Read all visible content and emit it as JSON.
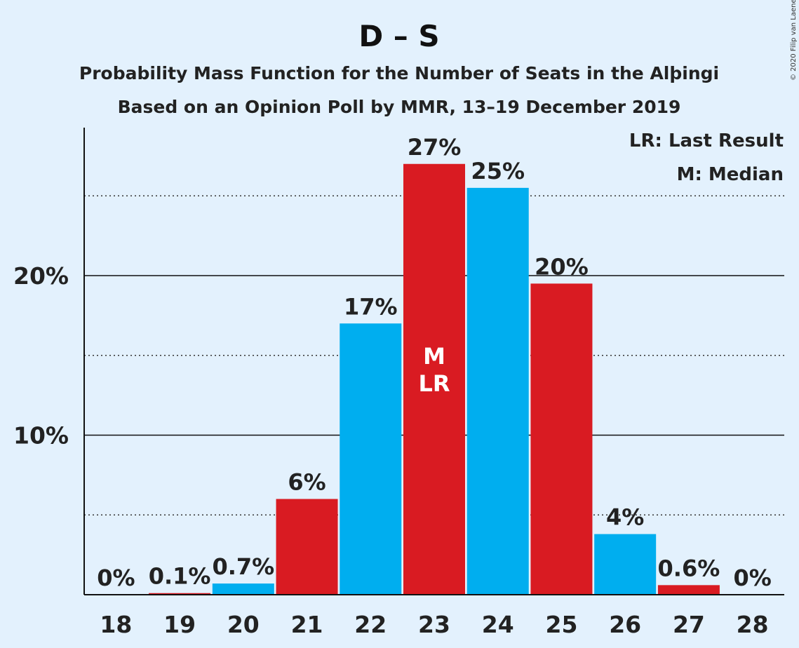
{
  "title": "D – S",
  "subtitle1": "Probability Mass Function for the Number of Seats in the Alþingi",
  "subtitle2": "Based on an Opinion Poll by MMR, 13–19 December 2019",
  "legend": {
    "last_result": "LR: Last Result",
    "median": "M: Median"
  },
  "copyright": "© 2020 Filip van Laenen",
  "colors": {
    "blue": "#00aeef",
    "red": "#d91b22",
    "background": "#e3f1fd"
  },
  "chart_data": {
    "type": "bar",
    "categories": [
      "18",
      "19",
      "20",
      "21",
      "22",
      "23",
      "24",
      "25",
      "26",
      "27",
      "28"
    ],
    "values": [
      0,
      0.1,
      0.7,
      6,
      17,
      27,
      25.5,
      19.5,
      3.8,
      0.6,
      0
    ],
    "labels": [
      "0%",
      "0.1%",
      "0.7%",
      "6%",
      "17%",
      "27%",
      "25%",
      "20%",
      "4%",
      "0.6%",
      "0%"
    ],
    "bar_colors": [
      "blue",
      "red",
      "blue",
      "red",
      "blue",
      "red",
      "blue",
      "red",
      "blue",
      "red",
      "blue"
    ],
    "yticks": [
      {
        "value": 10,
        "label": "10%"
      },
      {
        "value": 20,
        "label": "20%"
      }
    ],
    "minor_gridlines": [
      5,
      15,
      25
    ],
    "ylim": [
      0,
      29.3
    ],
    "annotations": [
      {
        "category": "23",
        "lines": [
          "M",
          "LR"
        ]
      }
    ]
  }
}
